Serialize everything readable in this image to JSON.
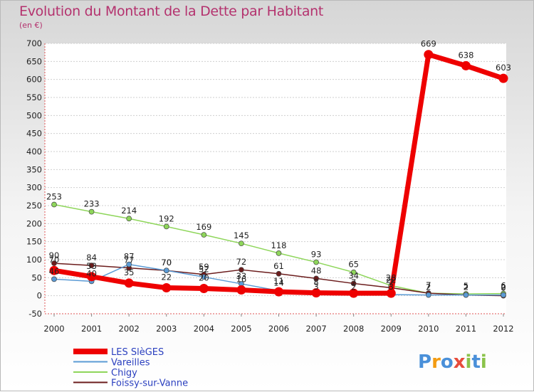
{
  "header": {
    "title": "Evolution du Montant de la Dette par Habitant",
    "subtitle": "(en €)"
  },
  "logo": {
    "text": "Proxiti"
  },
  "chart_data": {
    "type": "line",
    "title": "Evolution du Montant de la Dette par Habitant",
    "subtitle": "(en €)",
    "x": [
      "2000",
      "2001",
      "2002",
      "2003",
      "2004",
      "2005",
      "2006",
      "2007",
      "2008",
      "2009",
      "2010",
      "2011",
      "2012"
    ],
    "ylim": [
      -50,
      700
    ],
    "yticks": [
      -50,
      0,
      50,
      100,
      150,
      200,
      250,
      300,
      350,
      400,
      450,
      500,
      550,
      600,
      650,
      700
    ],
    "grid": "horizontal",
    "legend_position": "bottom-left",
    "series": [
      {
        "name": "LES SlèGES",
        "color": "#ee0000",
        "values": [
          70,
          53,
          35,
          22,
          20,
          16,
          11,
          8,
          7,
          7,
          669,
          638,
          603
        ]
      },
      {
        "name": "Vareilles",
        "color": "#5b9bd5",
        "values": [
          46,
          40,
          87,
          70,
          52,
          33,
          14,
          3,
          2,
          3,
          2,
          2,
          2
        ]
      },
      {
        "name": "Chigy",
        "color": "#8ed65a",
        "values": [
          253,
          233,
          214,
          192,
          169,
          145,
          118,
          93,
          65,
          28,
          7,
          5,
          6
        ]
      },
      {
        "name": "Foissy-sur-Vanne",
        "color": "#6b1c1c",
        "values": [
          90,
          84,
          77,
          70,
          59,
          72,
          61,
          48,
          34,
          22,
          7,
          2,
          0
        ]
      }
    ]
  }
}
